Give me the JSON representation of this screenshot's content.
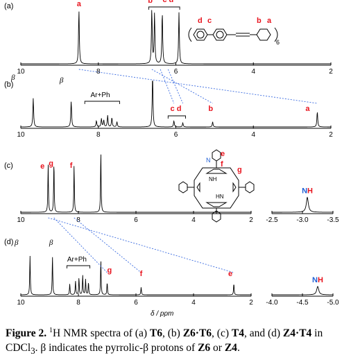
{
  "figure": {
    "panels": [
      {
        "id": "a",
        "label": "(a)",
        "axis": {
          "min": 2,
          "max": 10,
          "ticks": [
            "10",
            "8",
            "6",
            "4",
            "2"
          ]
        },
        "peaks": [
          {
            "x": 8.5,
            "h": 1.0
          },
          {
            "x": 6.62,
            "h": 1.0
          },
          {
            "x": 6.55,
            "h": 0.92
          },
          {
            "x": 6.35,
            "h": 0.96
          },
          {
            "x": 5.92,
            "h": 0.95
          }
        ],
        "annotations": [
          {
            "text": "a",
            "x": 8.5,
            "y": 9
          },
          {
            "text": "b",
            "x": 6.66,
            "y": 4
          },
          {
            "text": "c d",
            "x": 6.2,
            "y": 3
          }
        ]
      },
      {
        "id": "b",
        "label": "(b)",
        "axis": {
          "min": 2,
          "max": 10,
          "ticks": [
            "10",
            "8",
            "6",
            "4",
            "2"
          ]
        },
        "peaks": [
          {
            "x": 9.68,
            "h": 0.55
          },
          {
            "x": 8.7,
            "h": 0.5
          },
          {
            "x": 8.05,
            "h": 0.12
          },
          {
            "x": 7.92,
            "h": 0.16
          },
          {
            "x": 7.86,
            "h": 0.13
          },
          {
            "x": 7.76,
            "h": 0.22
          },
          {
            "x": 7.65,
            "h": 0.18
          },
          {
            "x": 7.52,
            "h": 0.1
          },
          {
            "x": 6.6,
            "h": 1.0
          },
          {
            "x": 6.05,
            "h": 0.12
          },
          {
            "x": 5.82,
            "h": 0.08
          },
          {
            "x": 5.05,
            "h": 0.1
          },
          {
            "x": 2.35,
            "h": 0.3
          }
        ],
        "annotations": [
          {
            "text": "β",
            "x": 10.2,
            "y": 115
          },
          {
            "text": "β",
            "x": 8.95,
            "y": 119
          },
          {
            "text": "Ar+Ph",
            "x": 7.95,
            "y": 140
          },
          {
            "text": "c d",
            "x": 6.0,
            "y": 160
          },
          {
            "text": "b",
            "x": 5.1,
            "y": 160
          },
          {
            "text": "a",
            "x": 2.6,
            "y": 160
          }
        ]
      },
      {
        "id": "c",
        "label": "(c)",
        "axis": {
          "min": 2,
          "max": 10,
          "ticks": [
            "10",
            "8",
            "6",
            "4",
            "2"
          ]
        },
        "peaks": [
          {
            "x": 9.05,
            "h": 0.8
          },
          {
            "x": 8.85,
            "h": 0.82
          },
          {
            "x": 8.15,
            "h": 0.78
          },
          {
            "x": 7.22,
            "h": 1.0
          }
        ],
        "annotations": [
          {
            "text": "e",
            "x": 9.25,
            "y": 243
          },
          {
            "text": "g",
            "x": 8.95,
            "y": 239
          },
          {
            "text": "f",
            "x": 8.25,
            "y": 242
          }
        ]
      },
      {
        "id": "d",
        "label": "(d)",
        "axis": {
          "min": 2,
          "max": 10,
          "ticks": [
            "10",
            "8",
            "6",
            "4",
            "2"
          ]
        },
        "peaks": [
          {
            "x": 9.68,
            "h": 0.7
          },
          {
            "x": 8.9,
            "h": 0.7
          },
          {
            "x": 8.3,
            "h": 0.2
          },
          {
            "x": 8.1,
            "h": 0.25
          },
          {
            "x": 7.98,
            "h": 0.3
          },
          {
            "x": 7.85,
            "h": 0.35
          },
          {
            "x": 7.75,
            "h": 0.28
          },
          {
            "x": 7.65,
            "h": 0.22
          },
          {
            "x": 7.22,
            "h": 0.62
          },
          {
            "x": 7.0,
            "h": 0.22
          },
          {
            "x": 5.82,
            "h": 0.14
          },
          {
            "x": 2.6,
            "h": 0.2
          }
        ],
        "annotations": [
          {
            "text": "β",
            "x": 10.15,
            "y": 353
          },
          {
            "text": "β",
            "x": 8.95,
            "y": 353
          },
          {
            "text": "Ar+Ph",
            "x": 8.05,
            "y": 377
          },
          {
            "text": "g",
            "x": 6.92,
            "y": 393
          },
          {
            "text": "f",
            "x": 5.82,
            "y": 398
          },
          {
            "text": "e",
            "x": 2.72,
            "y": 398
          }
        ]
      }
    ],
    "insets": [
      {
        "panel": "c",
        "axis": {
          "min": -3.5,
          "max": -2.5,
          "ticks": [
            "-2.5",
            "-3.0",
            "-3.5"
          ]
        },
        "peak": {
          "x": -3.08,
          "h": 0.25
        },
        "label": {
          "n": "N",
          "h": "H"
        }
      },
      {
        "panel": "d",
        "axis": {
          "min": -5.0,
          "max": -4.0,
          "ticks": [
            "-4.0",
            "-4.5",
            "-5.0"
          ]
        },
        "peak": {
          "x": -4.75,
          "h": 0.15
        },
        "label": {
          "n": "N",
          "h": "H"
        }
      }
    ],
    "xlabel": "δ / ppm",
    "structure_a": {
      "labels": [
        "d",
        "c",
        "b",
        "a"
      ],
      "subscript": "6"
    },
    "porphyrin_labels": {
      "e": "e",
      "f": "f",
      "g": "g",
      "nh": "NH",
      "hn": "HN"
    },
    "colors": {
      "label_red": "#e8141e",
      "nh_blue": "#1f5fd4",
      "dash_blue": "#3a6be0",
      "trace": "#000000"
    }
  },
  "caption": {
    "prefix": "Figure 2.",
    "text_1": "H NMR spectra of (a) ",
    "sup": "1",
    "t6": "T6",
    "text_2": ", (b) ",
    "z6t6": "Z6·T6",
    "text_3": ", (c) ",
    "t4": "T4",
    "text_4": ", and (d) ",
    "z4": "Z4·",
    "t4b": "T4",
    "text_5": " in CDCl",
    "sub3": "3",
    "text_6": ". β indicates the pyrrolic-β protons of ",
    "z6": "Z6",
    "text_7": " or ",
    "z4b": "Z4",
    "text_8": "."
  }
}
